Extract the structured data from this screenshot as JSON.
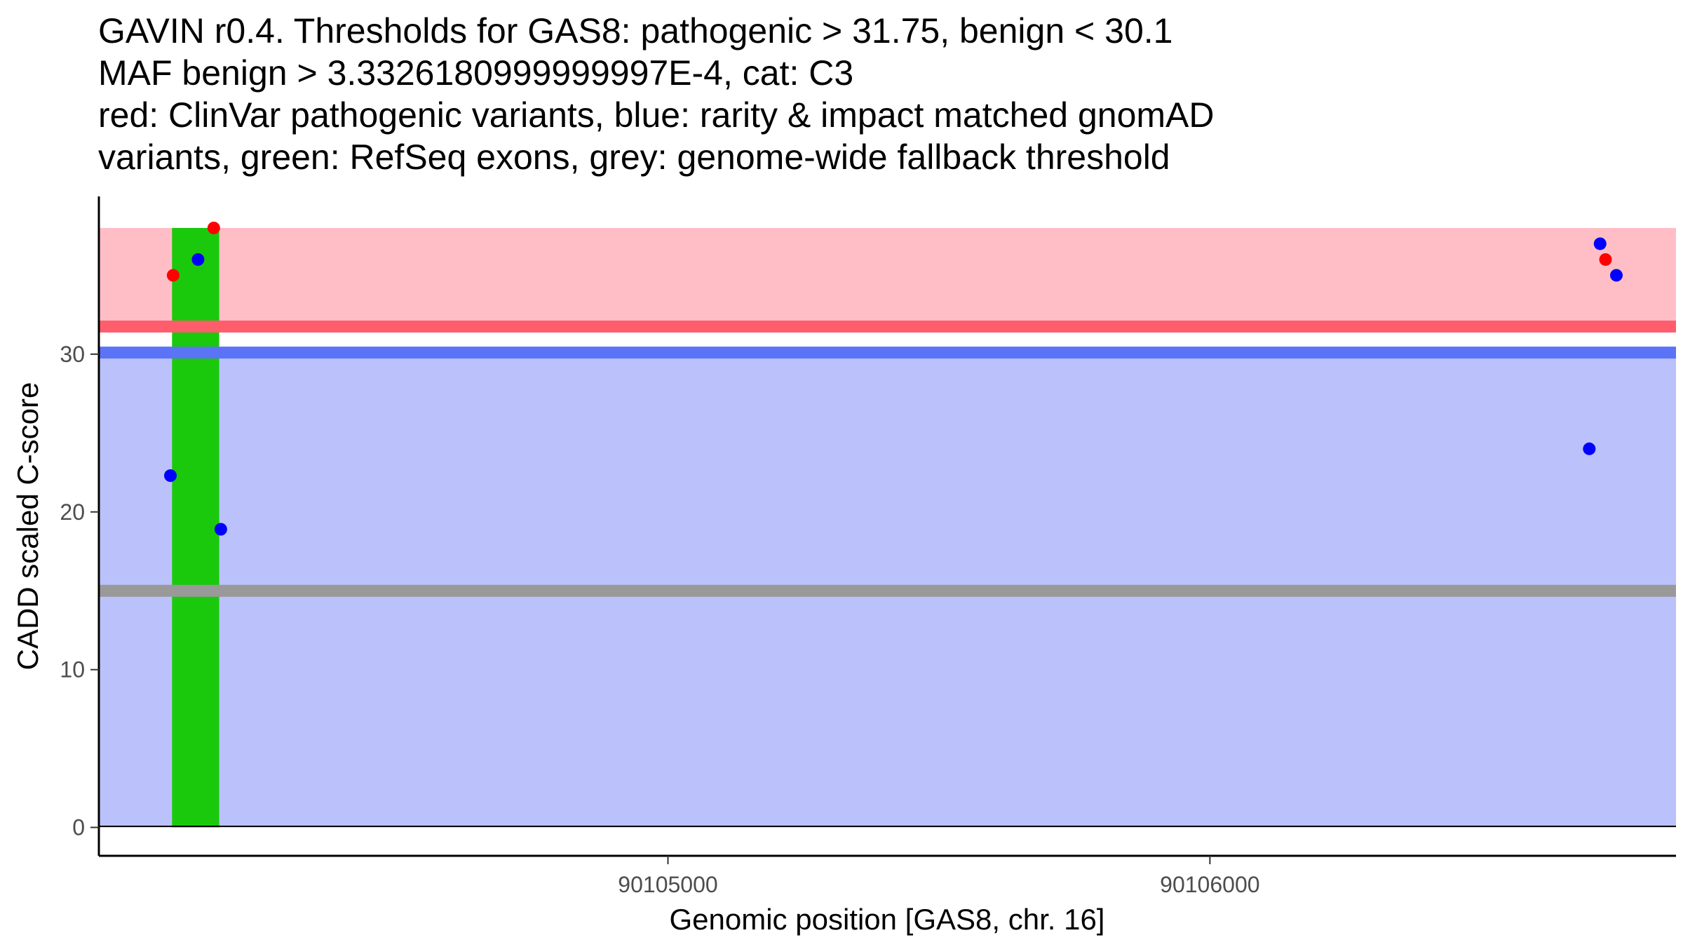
{
  "chart_data": {
    "type": "scatter",
    "title_lines": [
      "GAVIN r0.4. Thresholds for GAS8: pathogenic > 31.75, benign < 30.1",
      "MAF benign > 3.3326180999999997E-4, cat: C3",
      "red: ClinVar pathogenic variants, blue: rarity & impact matched gnomAD",
      "variants, green: RefSeq exons, grey: genome-wide fallback threshold"
    ],
    "xlabel": "Genomic position [GAS8, chr. 16]",
    "ylabel": "CADD scaled C-score",
    "xlim": [
      90103950,
      90106860
    ],
    "ylim": [
      -1.8,
      40
    ],
    "x_ticks": [
      {
        "value": 90105000,
        "label": "90105000"
      },
      {
        "value": 90106000,
        "label": "90106000"
      }
    ],
    "y_ticks": [
      {
        "value": 0,
        "label": "0"
      },
      {
        "value": 10,
        "label": "10"
      },
      {
        "value": 20,
        "label": "20"
      },
      {
        "value": 30,
        "label": "30"
      }
    ],
    "bands": [
      {
        "name": "pathogenic-zone",
        "y0": 31.75,
        "y1": 38,
        "color": "#ffbec6"
      },
      {
        "name": "benign-zone",
        "y0": 0,
        "y1": 30.1,
        "color": "#bbc1fa"
      }
    ],
    "exons": [
      {
        "x0": 90104085,
        "x1": 90104172,
        "y0": 0,
        "y1": 38,
        "color": "#1ac90b"
      }
    ],
    "threshold_lines": [
      {
        "name": "pathogenic-threshold",
        "y": 31.75,
        "color": "#ff5d6c"
      },
      {
        "name": "benign-threshold",
        "y": 30.1,
        "color": "#5b73f6"
      },
      {
        "name": "fallback-threshold",
        "y": 15,
        "color": "#999999"
      }
    ],
    "series": [
      {
        "name": "ClinVar pathogenic",
        "color": "#ff0000",
        "points": [
          {
            "x": 90104087,
            "y": 35.0
          },
          {
            "x": 90104162,
            "y": 38.0
          },
          {
            "x": 90106730,
            "y": 36.0
          }
        ]
      },
      {
        "name": "gnomAD matched",
        "color": "#0000ff",
        "points": [
          {
            "x": 90104082,
            "y": 22.3
          },
          {
            "x": 90104133,
            "y": 36.0
          },
          {
            "x": 90104175,
            "y": 18.9
          },
          {
            "x": 90106700,
            "y": 24.0
          },
          {
            "x": 90106720,
            "y": 37.0
          },
          {
            "x": 90106750,
            "y": 35.0
          }
        ]
      }
    ]
  }
}
